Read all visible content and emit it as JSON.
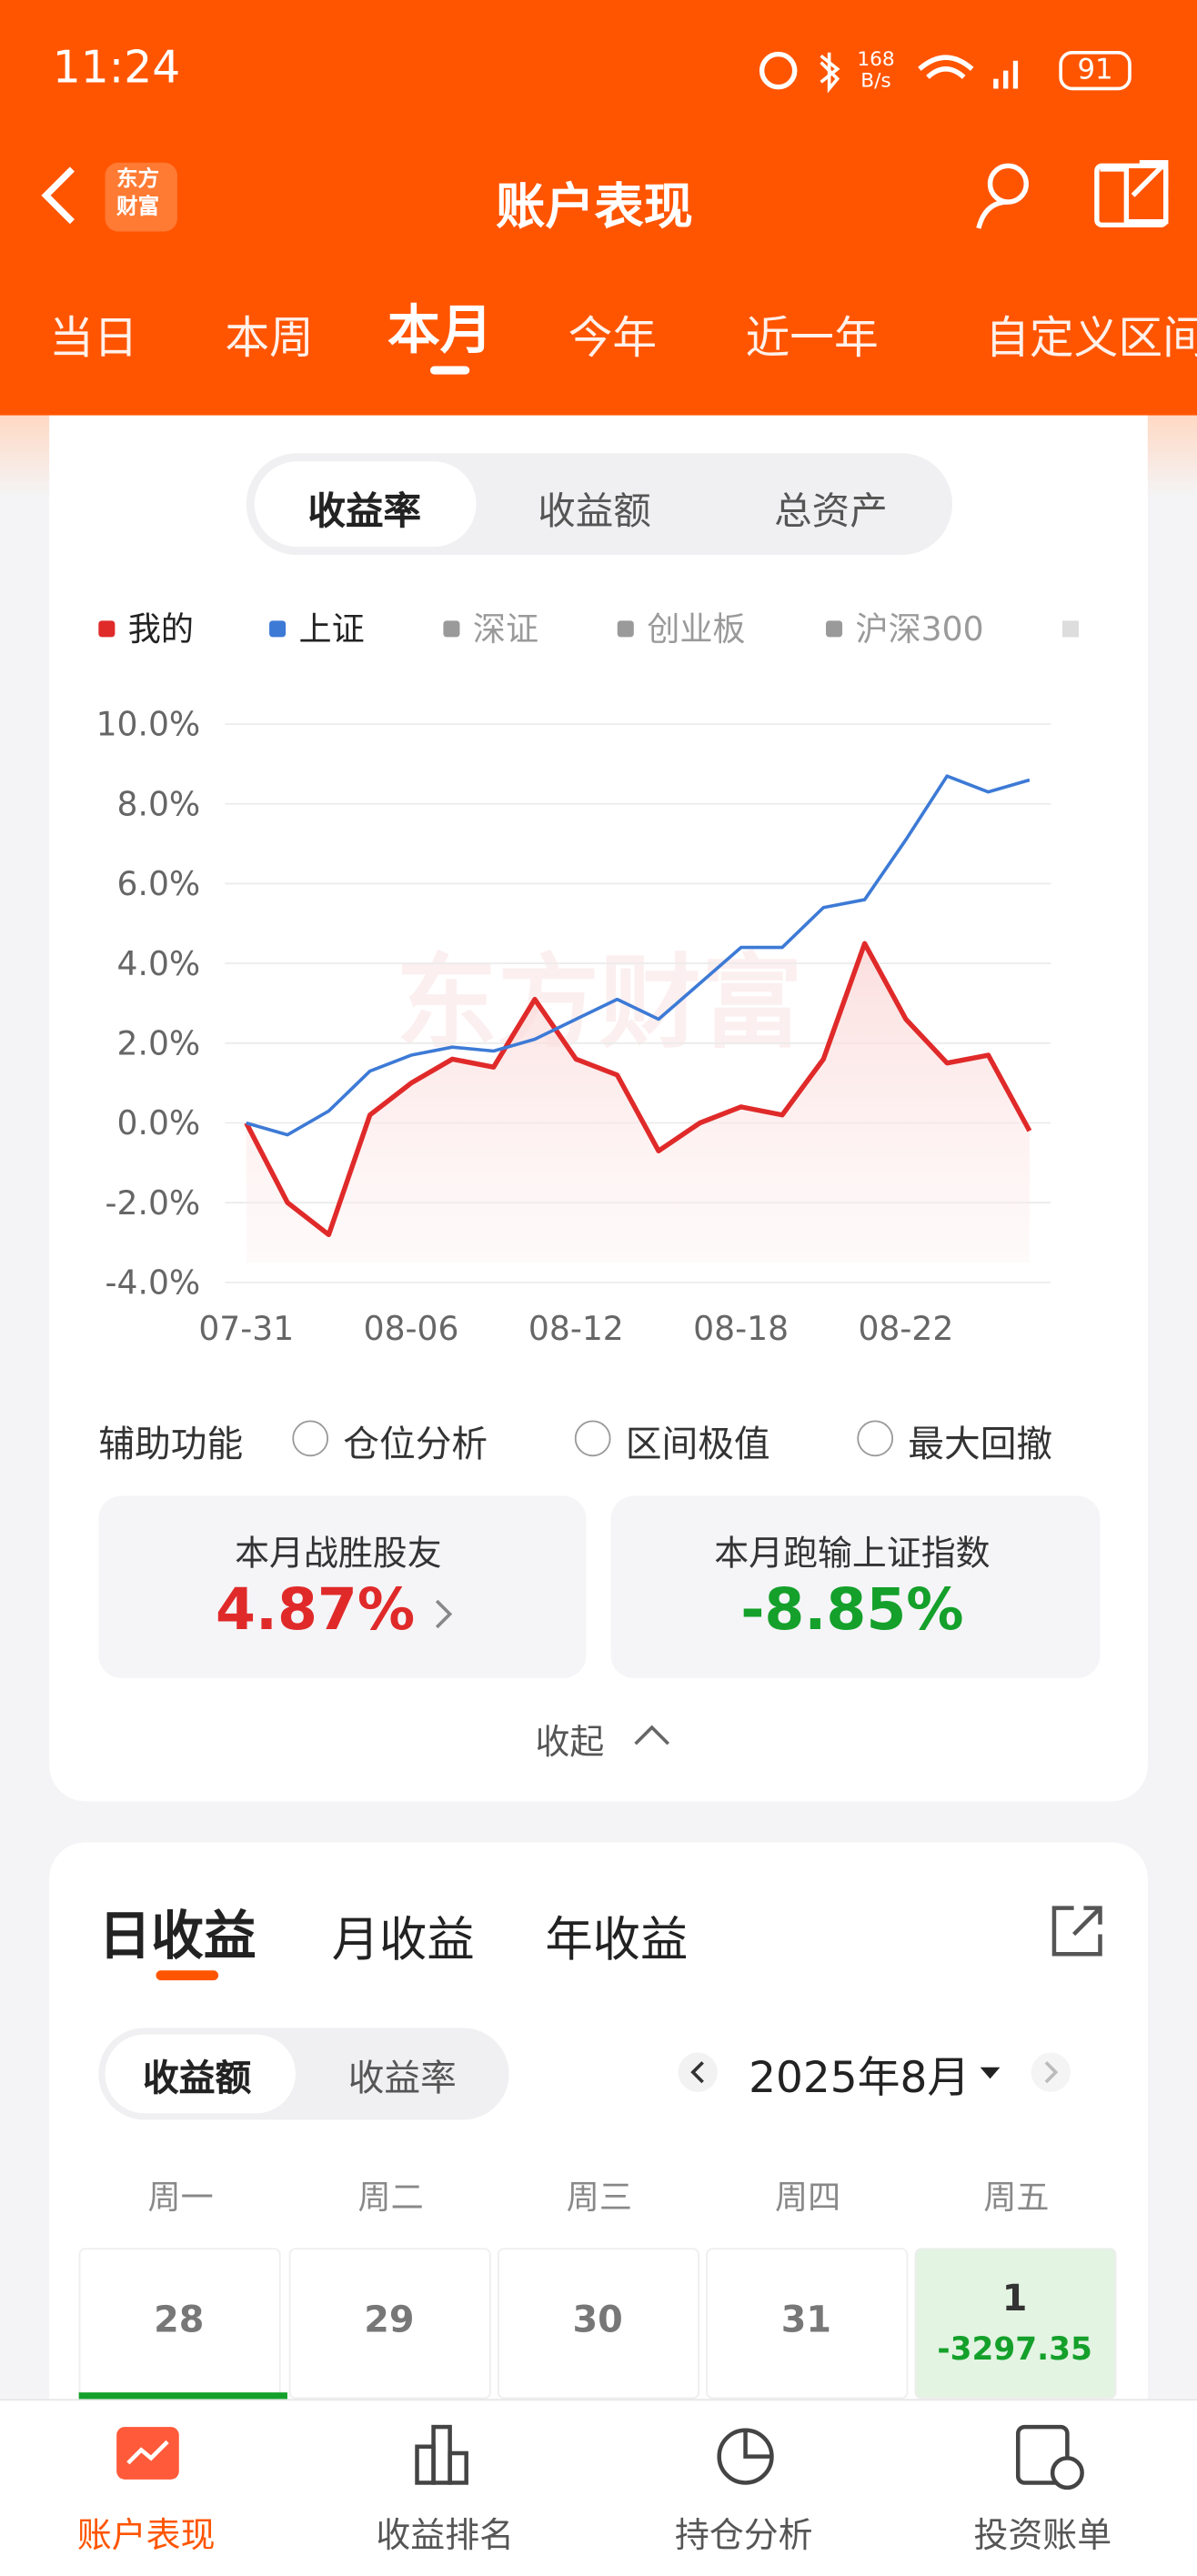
{
  "status_bar": {
    "time": "11:24",
    "speed": "168",
    "speed_unit": "B/s",
    "battery": "91"
  },
  "header": {
    "logo": "东方财富",
    "title": "账户表现"
  },
  "period_tabs": [
    "当日",
    "本周",
    "本月",
    "今年",
    "近一年",
    "自定义区间"
  ],
  "metric_tabs": [
    "收益率",
    "收益额",
    "总资产"
  ],
  "chart_data": {
    "type": "line",
    "watermark": "东方财富",
    "categories": [
      "07-31",
      null,
      null,
      null,
      "08-06",
      null,
      null,
      null,
      "08-12",
      null,
      null,
      null,
      "08-18",
      null,
      null,
      null,
      "08-22",
      null,
      null,
      null
    ],
    "series": [
      {
        "name": "我的",
        "color": "#e02a2a",
        "values": [
          0,
          -2.0,
          -2.8,
          0.2,
          1.0,
          1.6,
          1.4,
          3.1,
          1.6,
          1.2,
          -0.7,
          0.0,
          0.4,
          0.2,
          1.6,
          4.5,
          2.6,
          1.5,
          1.7,
          -0.2
        ]
      },
      {
        "name": "上证",
        "color": "#3d7ad6",
        "values": [
          0,
          -0.3,
          0.3,
          1.3,
          1.7,
          1.9,
          1.8,
          2.1,
          2.6,
          3.1,
          2.6,
          3.5,
          4.4,
          4.4,
          5.4,
          5.6,
          7.1,
          8.7,
          8.3,
          8.6
        ]
      }
    ],
    "legend_inactive": [
      "深证",
      "创业板",
      "沪深300"
    ],
    "inactive_color": "#9a9a9a",
    "ylim": [
      -4,
      10
    ],
    "yticks": [
      {
        "value": -4,
        "label": "-4.0%"
      },
      {
        "value": -2,
        "label": "-2.0%"
      },
      {
        "value": 0,
        "label": "0.0%"
      },
      {
        "value": 2,
        "label": "2.0%"
      },
      {
        "value": 4,
        "label": "4.0%"
      },
      {
        "value": 6,
        "label": "6.0%"
      },
      {
        "value": 8,
        "label": "8.0%"
      },
      {
        "value": 10,
        "label": "10.0%"
      }
    ],
    "grid": true
  },
  "aux": {
    "label": "辅助功能",
    "options": [
      "仓位分析",
      "区间极值",
      "最大回撤"
    ]
  },
  "stats": [
    {
      "label": "本月战胜股友",
      "value": "4.87%"
    },
    {
      "label": "本月跑输上证指数",
      "value": "-8.85%"
    }
  ],
  "collapse": "收起",
  "earnings_tabs": [
    "日收益",
    "月收益",
    "年收益"
  ],
  "earnings_toggle": [
    "收益额",
    "收益率"
  ],
  "month": "2025年8月",
  "weekdays": [
    "周一",
    "周二",
    "周三",
    "周四",
    "周五"
  ],
  "calendar": [
    {
      "day": "28"
    },
    {
      "day": "29"
    },
    {
      "day": "30"
    },
    {
      "day": "31"
    },
    {
      "day": "1",
      "value": "-3297.35"
    }
  ],
  "bottom_nav": [
    "账户表现",
    "收益排名",
    "持仓分析",
    "投资账单"
  ]
}
